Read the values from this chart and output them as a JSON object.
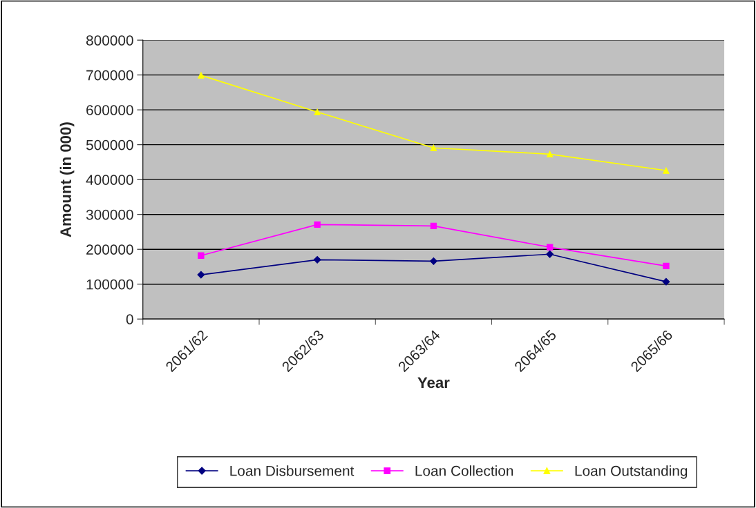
{
  "chart_data": {
    "type": "line",
    "xlabel": "Year",
    "ylabel": "Amount (in 000)",
    "categories": [
      "2061/62",
      "2062/63",
      "2063/64",
      "2064/65",
      "2065/66"
    ],
    "series": [
      {
        "name": "Loan Disbursement",
        "color": "#000080",
        "marker": "diamond",
        "values": [
          127000,
          170000,
          166000,
          186000,
          107000
        ]
      },
      {
        "name": "Loan Collection",
        "color": "#ff00ff",
        "marker": "square",
        "values": [
          182000,
          271000,
          267000,
          206000,
          152000
        ]
      },
      {
        "name": "Loan Outstanding",
        "color": "#ffff00",
        "marker": "triangle",
        "values": [
          699000,
          594000,
          491000,
          473000,
          426000
        ]
      }
    ],
    "ylim": [
      0,
      800000
    ],
    "yticks": [
      0,
      100000,
      200000,
      300000,
      400000,
      500000,
      600000,
      700000,
      800000
    ],
    "grid": "y",
    "legend": "bottom",
    "line_style": "solid"
  }
}
